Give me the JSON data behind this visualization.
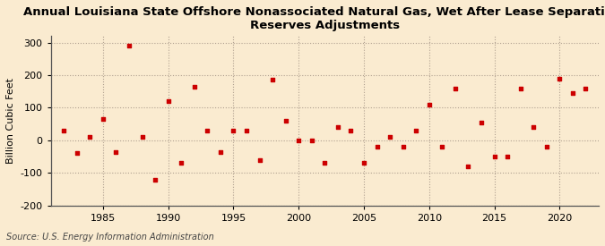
{
  "title": "Annual Louisiana State Offshore Nonassociated Natural Gas, Wet After Lease Separation,\nReserves Adjustments",
  "ylabel": "Billion Cubic Feet",
  "source": "Source: U.S. Energy Information Administration",
  "background_color": "#faebd0",
  "plot_bg_color": "#faebd0",
  "marker_color": "#cc0000",
  "years": [
    1982,
    1983,
    1984,
    1985,
    1986,
    1987,
    1988,
    1989,
    1990,
    1991,
    1992,
    1993,
    1994,
    1995,
    1996,
    1997,
    1998,
    1999,
    2000,
    2001,
    2002,
    2003,
    2004,
    2005,
    2006,
    2007,
    2008,
    2009,
    2010,
    2011,
    2012,
    2013,
    2014,
    2015,
    2016,
    2017,
    2018,
    2019,
    2020,
    2021,
    2022
  ],
  "values": [
    30,
    -40,
    10,
    65,
    -35,
    290,
    10,
    -120,
    120,
    -70,
    165,
    30,
    -35,
    30,
    30,
    -60,
    185,
    60,
    0,
    0,
    -70,
    40,
    30,
    -70,
    -20,
    10,
    -20,
    30,
    110,
    -20,
    160,
    -80,
    55,
    -50,
    -50,
    160,
    40,
    -20,
    190,
    145,
    160
  ],
  "xlim": [
    1981,
    2023
  ],
  "ylim": [
    -200,
    320
  ],
  "yticks": [
    -200,
    -100,
    0,
    100,
    200,
    300
  ],
  "xticks": [
    1985,
    1990,
    1995,
    2000,
    2005,
    2010,
    2015,
    2020
  ],
  "title_fontsize": 9.5,
  "ylabel_fontsize": 8,
  "tick_fontsize": 8,
  "source_fontsize": 7
}
